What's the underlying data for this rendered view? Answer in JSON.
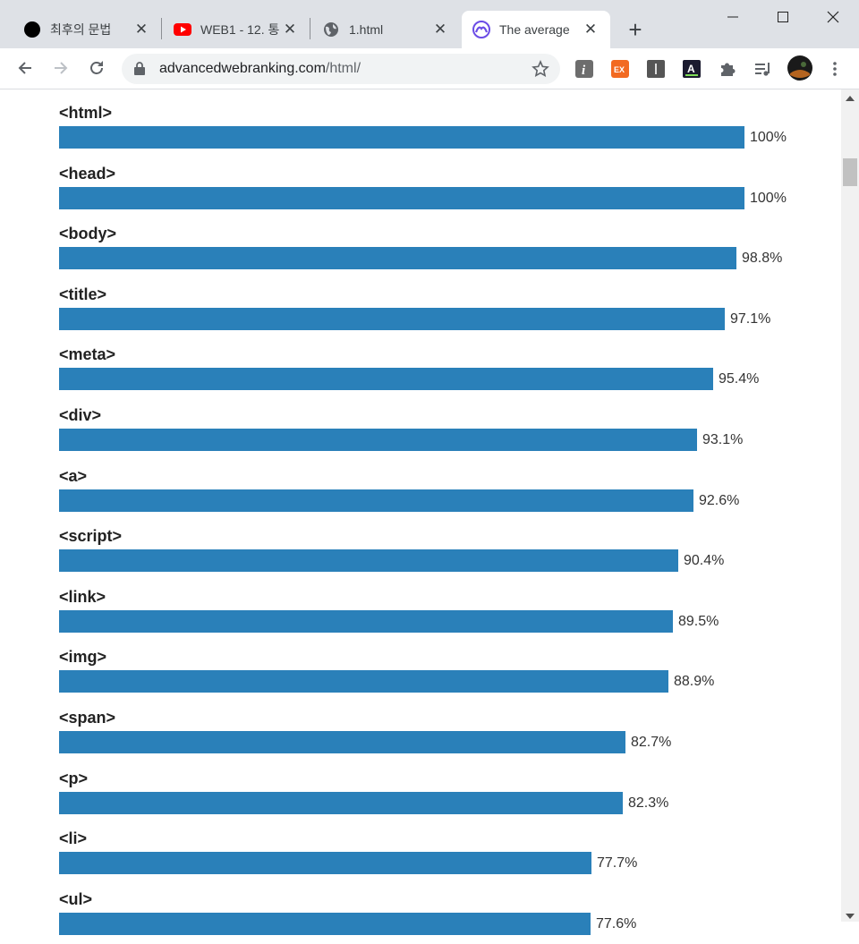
{
  "tabs": [
    {
      "title": "최후의 문법",
      "icon": "black-circle-icon",
      "active": false
    },
    {
      "title": "WEB1 - 12. 통",
      "icon": "youtube-icon",
      "active": false
    },
    {
      "title": "1.html",
      "icon": "globe-icon",
      "active": false
    },
    {
      "title": "The average",
      "icon": "site-logo-icon",
      "active": true
    }
  ],
  "address_bar": {
    "domain": "advancedwebranking.com",
    "path": "/html/"
  },
  "extensions": [
    "info-extension-icon",
    "ex-extension-icon",
    "dark-square-extension-icon",
    "a-extension-icon",
    "puzzle-icon",
    "media-queue-icon",
    "profile-avatar"
  ],
  "colors": {
    "bar": "#2a80b9",
    "tab_strip": "#dee1e6"
  },
  "chart_data": {
    "type": "bar",
    "orientation": "horizontal",
    "categories": [
      "<html>",
      "<head>",
      "<body>",
      "<title>",
      "<meta>",
      "<div>",
      "<a>",
      "<script>",
      "<link>",
      "<img>",
      "<span>",
      "<p>",
      "<li>",
      "<ul>"
    ],
    "values": [
      100,
      100,
      98.8,
      97.1,
      95.4,
      93.1,
      92.6,
      90.4,
      89.5,
      88.9,
      82.7,
      82.3,
      77.7,
      77.6
    ],
    "value_labels": [
      "100%",
      "100%",
      "98.8%",
      "97.1%",
      "95.4%",
      "93.1%",
      "92.6%",
      "90.4%",
      "89.5%",
      "88.9%",
      "82.7%",
      "82.3%",
      "77.7%",
      "77.6%"
    ],
    "xlim": [
      0,
      100
    ]
  }
}
